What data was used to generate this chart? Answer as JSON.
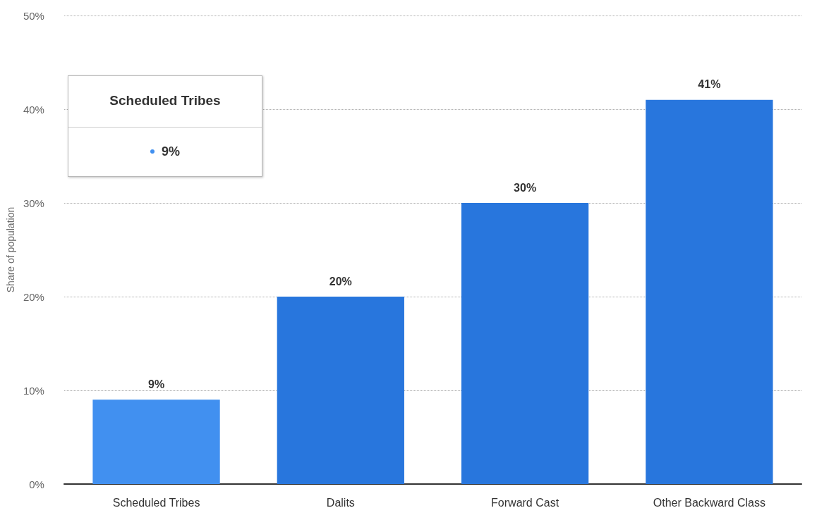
{
  "chart_data": {
    "type": "bar",
    "ylabel": "Share of population",
    "categories": [
      "Scheduled Tribes",
      "Dalits",
      "Forward Cast",
      "Other Backward Class"
    ],
    "values": [
      9,
      20,
      30,
      41
    ],
    "colors": [
      "#4190f0",
      "#2876dd",
      "#2876dd",
      "#2876dd"
    ],
    "value_labels": [
      "9%",
      "20%",
      "30%",
      "41%"
    ],
    "ylim": [
      0,
      50
    ],
    "yticks": [
      {
        "value": 0,
        "label": "0%"
      },
      {
        "value": 10,
        "label": "10%"
      },
      {
        "value": 20,
        "label": "20%"
      },
      {
        "value": 30,
        "label": "30%"
      },
      {
        "value": 40,
        "label": "40%"
      },
      {
        "value": 50,
        "label": "50%"
      }
    ],
    "grid": "y",
    "annotations": [
      "Scheduled Tribes",
      "9%"
    ]
  }
}
